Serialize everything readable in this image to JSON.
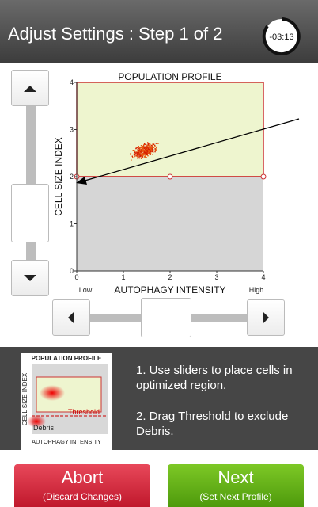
{
  "header": {
    "title": "Adjust Settings : Step 1 of 2",
    "timer": "-03:13"
  },
  "plot": {
    "title": "POPULATION PROFILE",
    "y_label": "CELL SIZE INDEX",
    "x_label": "AUTOPHAGY INTENSITY",
    "xlim": [
      0,
      4
    ],
    "ylim": [
      0,
      4
    ],
    "xticks": [
      0,
      1,
      2,
      3,
      4
    ],
    "yticks": [
      0,
      1,
      2,
      3,
      4
    ],
    "x_low": "Low",
    "x_high": "High",
    "threshold": 2
  },
  "instructions": {
    "thumb_title": "POPULATION PROFILE",
    "thumb_y_label": "CELL SIZE INDEX",
    "thumb_x_label": "AUTOPHAGY INTENSITY",
    "thumb_threshold": "Threshold",
    "thumb_debris": "Debris",
    "steps": [
      "1. Use sliders to place cells in optimized region.",
      "2. Drag Threshold to exclude Debris."
    ]
  },
  "buttons": {
    "abort": {
      "label": "Abort",
      "sub": "(Discard Changes)"
    },
    "next": {
      "label": "Next",
      "sub": "(Set Next Profile)"
    }
  }
}
